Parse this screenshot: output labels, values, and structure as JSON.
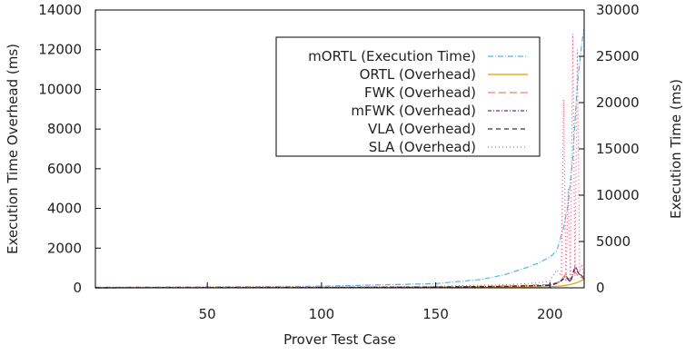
{
  "chart_data": {
    "type": "line",
    "xlabel": "Prover Test Case",
    "ylabel_left": "Execution Time Overhead (ms)",
    "ylabel_right": "Execution Time (ms)",
    "xlim": [
      1,
      215
    ],
    "ylim_left": [
      0,
      14000
    ],
    "ylim_right": [
      0,
      30000
    ],
    "x_ticks": [
      50,
      100,
      150,
      200
    ],
    "y_left_ticks": [
      0,
      2000,
      4000,
      6000,
      8000,
      10000,
      12000,
      14000
    ],
    "y_right_ticks": [
      0,
      5000,
      10000,
      15000,
      20000,
      25000,
      30000
    ],
    "grid": false,
    "legend_position": "top-right",
    "series": [
      {
        "name": "mORTL (Execution Time)",
        "axis": "right",
        "color": "#56b4e9",
        "dash": "6 2 1 2",
        "x": [
          1,
          50,
          100,
          150,
          170,
          180,
          190,
          195,
          200,
          203,
          206,
          208,
          210,
          212,
          214,
          215
        ],
        "y": [
          60,
          100,
          180,
          450,
          900,
          1400,
          2200,
          2700,
          3300,
          4000,
          6500,
          9000,
          14000,
          22000,
          26500,
          28000
        ]
      },
      {
        "name": "ORTL (Overhead)",
        "axis": "left",
        "color": "#e69f00",
        "dash": "",
        "x": [
          1,
          50,
          100,
          150,
          180,
          200,
          205,
          208,
          210,
          212,
          214,
          215
        ],
        "y": [
          0,
          10,
          15,
          25,
          35,
          60,
          90,
          140,
          200,
          260,
          380,
          420
        ]
      },
      {
        "name": "FWK (Overhead)",
        "axis": "left",
        "color": "#f08060",
        "dash": "8 4",
        "x": [
          1,
          50,
          100,
          150,
          180,
          200,
          204,
          207,
          209,
          211,
          213,
          215
        ],
        "y": [
          0,
          15,
          25,
          50,
          90,
          160,
          300,
          700,
          350,
          800,
          500,
          600
        ]
      },
      {
        "name": "mFWK (Overhead)",
        "axis": "left",
        "color": "#7b2d6e",
        "dash": "4 2 1 2",
        "x": [
          1,
          50,
          100,
          150,
          180,
          200,
          204,
          207,
          209,
          211,
          213,
          215
        ],
        "y": [
          0,
          12,
          20,
          40,
          80,
          130,
          280,
          600,
          300,
          1100,
          700,
          500
        ]
      },
      {
        "name": "VLA (Overhead)",
        "axis": "left",
        "color": "#333355",
        "dash": "5 4",
        "x": [
          1,
          50,
          100,
          150,
          180,
          200,
          204,
          207,
          209,
          211,
          213,
          215
        ],
        "y": [
          0,
          10,
          18,
          35,
          70,
          120,
          250,
          550,
          280,
          1000,
          650,
          450
        ]
      },
      {
        "name": "SLA (Overhead)",
        "axis": "left",
        "color": "#f06080",
        "dash": "1 3",
        "x": [
          1,
          50,
          100,
          150,
          180,
          195,
          200,
          203,
          205,
          206,
          207,
          208,
          209,
          210,
          211,
          212,
          213,
          214,
          215
        ],
        "y": [
          0,
          20,
          40,
          80,
          150,
          250,
          350,
          900,
          600,
          9500,
          300,
          5000,
          400,
          12800,
          600,
          12000,
          800,
          1200,
          500
        ]
      }
    ]
  }
}
